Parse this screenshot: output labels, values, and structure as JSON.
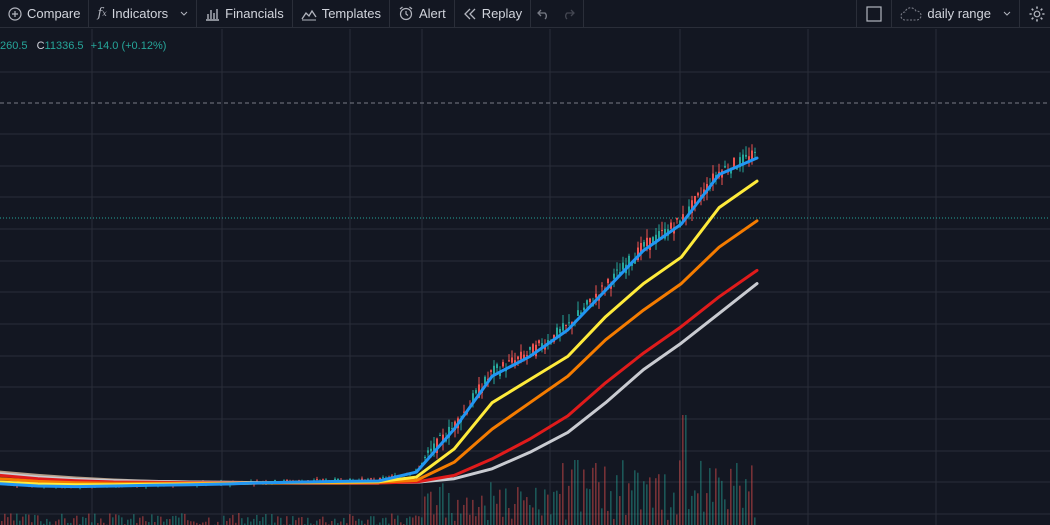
{
  "toolbar": {
    "compare": "Compare",
    "indicators": "Indicators",
    "financials": "Financials",
    "templates": "Templates",
    "alert": "Alert",
    "replay": "Replay",
    "layout_name": "daily range"
  },
  "legend": {
    "low_fragment": "260.5",
    "close_key": "C",
    "close_value": "11336.5",
    "change": "+14.0 (+0.12%)"
  },
  "colors": {
    "background": "#131722",
    "grid": "#2a2e39",
    "up": "#26a69a",
    "down": "#ef5350",
    "ma_blue": "#2196f3",
    "ma_yellow": "#ffeb3b",
    "ma_orange": "#f57c00",
    "ma_red": "#e01b1b",
    "ma_gray": "#c9cbd1",
    "ma_tan": "#b69f8a"
  },
  "chart_data": {
    "type": "line",
    "series": [
      {
        "color": "#2196f3",
        "values": [
          10315,
          10308,
          10306,
          10308,
          10310,
          10312,
          10314,
          10318,
          10320,
          10322,
          10323,
          10350,
          10480,
          10640,
          10700,
          10780,
          10900,
          11020,
          11100,
          11250,
          11300
        ]
      },
      {
        "color": "#ffeb3b",
        "values": [
          10320,
          10314,
          10312,
          10312,
          10313,
          10314,
          10315,
          10318,
          10319,
          10320,
          10321,
          10335,
          10420,
          10560,
          10630,
          10700,
          10820,
          10920,
          11000,
          11150,
          11230
        ]
      },
      {
        "color": "#f57c00",
        "values": [
          10330,
          10322,
          10318,
          10316,
          10316,
          10316,
          10316,
          10317,
          10318,
          10318,
          10319,
          10325,
          10380,
          10480,
          10560,
          10640,
          10750,
          10840,
          10920,
          11030,
          11110
        ]
      },
      {
        "color": "#e01b1b",
        "values": [
          10340,
          10330,
          10324,
          10320,
          10319,
          10318,
          10317,
          10317,
          10317,
          10317,
          10317,
          10320,
          10340,
          10390,
          10450,
          10520,
          10620,
          10710,
          10790,
          10880,
          10960
        ]
      },
      {
        "color": "#c9cbd1",
        "values": [
          10345,
          10335,
          10328,
          10324,
          10322,
          10320,
          10319,
          10318,
          10318,
          10318,
          10318,
          10319,
          10330,
          10360,
          10410,
          10470,
          10560,
          10660,
          10740,
          10830,
          10920
        ]
      },
      {
        "color": "#b69f8a",
        "values": [
          10350,
          10340,
          10332,
          10326,
          10322,
          10320,
          10318,
          10317,
          10316,
          10316,
          10316
        ]
      }
    ]
  }
}
